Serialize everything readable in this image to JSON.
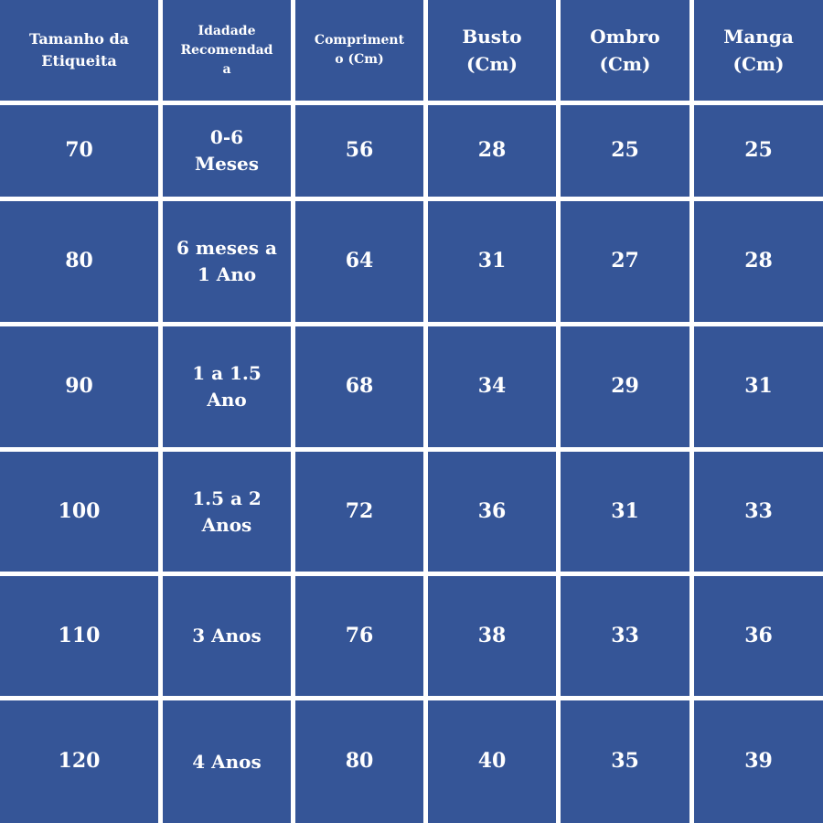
{
  "table": {
    "header": [
      [
        "Tamanho da",
        "Etiqueita"
      ],
      [
        "Idadade",
        "Recomendad",
        "a"
      ],
      [
        "Compriment",
        "o (Cm)"
      ],
      [
        "Busto",
        "(Cm)"
      ],
      [
        "Ombro",
        "(Cm)"
      ],
      [
        "Manga",
        "(Cm)"
      ]
    ],
    "rows": [
      [
        "70",
        "0-6 Meses",
        "56",
        "28",
        "25",
        "25"
      ],
      [
        "80",
        "6 meses a 1 Ano",
        "64",
        "31",
        "27",
        "28"
      ],
      [
        "90",
        "1 a 1.5 Ano",
        "68",
        "34",
        "29",
        "31"
      ],
      [
        "100",
        "1.5 a 2 Anos",
        "72",
        "36",
        "31",
        "33"
      ],
      [
        "110",
        "3 Anos",
        "76",
        "38",
        "33",
        "36"
      ],
      [
        "120",
        "4 Anos",
        "80",
        "40",
        "35",
        "39"
      ]
    ]
  }
}
